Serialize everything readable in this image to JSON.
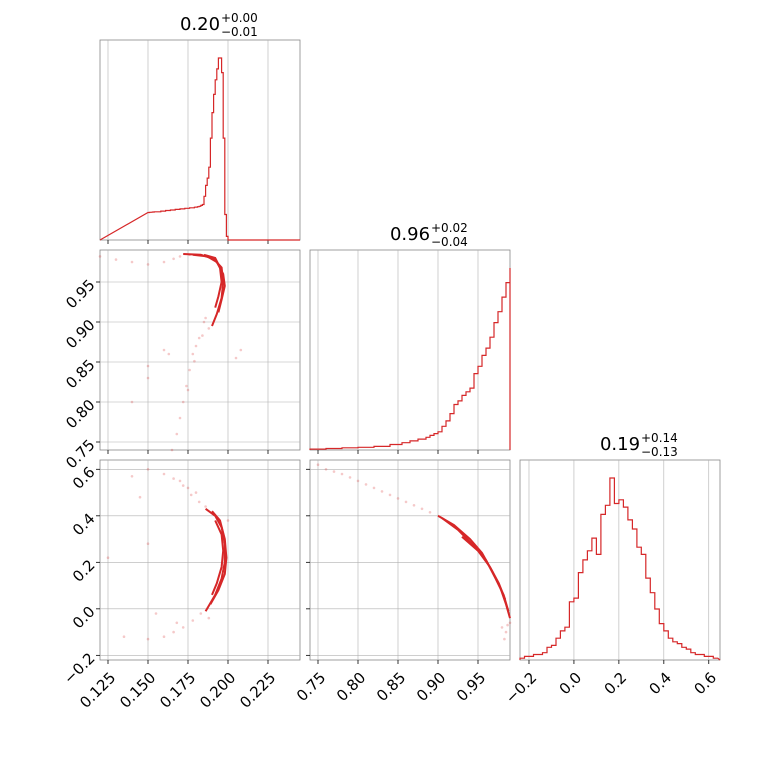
{
  "colors": {
    "accent": "#d62728",
    "grid": "#b0b0b0",
    "frame": "#888888"
  },
  "chart_data": [
    {
      "type": "histogram",
      "panel": "diag-0",
      "title": {
        "value": "0.20",
        "plus": "+0.00",
        "minus": "−0.01"
      },
      "xlim": [
        0.12,
        0.245
      ],
      "xticks": [
        0.125,
        0.15,
        0.175,
        0.2,
        0.225
      ],
      "bins": [
        [
          0.15,
          0.151
        ],
        [
          0.151,
          0.152
        ],
        [
          0.152,
          0.153
        ],
        [
          0.153,
          0.154
        ],
        [
          0.154,
          0.155
        ],
        [
          0.158,
          0.159
        ],
        [
          0.161,
          0.162
        ],
        [
          0.164,
          0.165
        ],
        [
          0.167,
          0.168
        ],
        [
          0.17,
          0.171
        ],
        [
          0.173,
          0.174
        ],
        [
          0.176,
          0.177
        ],
        [
          0.179,
          0.18
        ],
        [
          0.18,
          0.181
        ],
        [
          0.181,
          0.183
        ],
        [
          0.182,
          0.185
        ],
        [
          0.183,
          0.19
        ],
        [
          0.184,
          0.195
        ],
        [
          0.185,
          0.24
        ],
        [
          0.186,
          0.3
        ],
        [
          0.187,
          0.34
        ],
        [
          0.188,
          0.4
        ],
        [
          0.189,
          0.56
        ],
        [
          0.19,
          0.7
        ],
        [
          0.191,
          0.8
        ],
        [
          0.192,
          0.88
        ],
        [
          0.193,
          0.94
        ],
        [
          0.194,
          1.0
        ],
        [
          0.195,
          1.0
        ],
        [
          0.196,
          0.92
        ],
        [
          0.197,
          0.56
        ],
        [
          0.198,
          0.14
        ],
        [
          0.199,
          0.02
        ],
        [
          0.2,
          0.0
        ]
      ]
    },
    {
      "type": "histogram",
      "panel": "diag-1",
      "title": {
        "value": "0.96",
        "plus": "+0.02",
        "minus": "−0.04"
      },
      "xlim": [
        0.74,
        0.99
      ],
      "xticks": [
        0.75,
        0.8,
        0.85,
        0.9,
        0.95
      ],
      "bins": [
        [
          0.74,
          0.005
        ],
        [
          0.76,
          0.008
        ],
        [
          0.78,
          0.012
        ],
        [
          0.8,
          0.015
        ],
        [
          0.82,
          0.02
        ],
        [
          0.84,
          0.03
        ],
        [
          0.855,
          0.04
        ],
        [
          0.865,
          0.05
        ],
        [
          0.875,
          0.06
        ],
        [
          0.885,
          0.07
        ],
        [
          0.89,
          0.08
        ],
        [
          0.895,
          0.09
        ],
        [
          0.9,
          0.1
        ],
        [
          0.905,
          0.13
        ],
        [
          0.91,
          0.16
        ],
        [
          0.915,
          0.2
        ],
        [
          0.92,
          0.25
        ],
        [
          0.925,
          0.27
        ],
        [
          0.93,
          0.3
        ],
        [
          0.935,
          0.32
        ],
        [
          0.94,
          0.34
        ],
        [
          0.945,
          0.42
        ],
        [
          0.95,
          0.46
        ],
        [
          0.955,
          0.52
        ],
        [
          0.96,
          0.56
        ],
        [
          0.965,
          0.62
        ],
        [
          0.97,
          0.7
        ],
        [
          0.975,
          0.76
        ],
        [
          0.98,
          0.84
        ],
        [
          0.985,
          0.92
        ],
        [
          0.99,
          1.0
        ]
      ]
    },
    {
      "type": "histogram",
      "panel": "diag-2",
      "title": {
        "value": "0.19",
        "plus": "+0.14",
        "minus": "−0.13"
      },
      "xlim": [
        -0.24,
        0.65
      ],
      "xticks": [
        -0.2,
        0.0,
        0.2,
        0.4,
        0.6
      ],
      "bins": [
        [
          -0.24,
          0.01
        ],
        [
          -0.22,
          0.02
        ],
        [
          -0.2,
          0.02
        ],
        [
          -0.18,
          0.03
        ],
        [
          -0.16,
          0.03
        ],
        [
          -0.14,
          0.04
        ],
        [
          -0.12,
          0.07
        ],
        [
          -0.1,
          0.08
        ],
        [
          -0.08,
          0.12
        ],
        [
          -0.06,
          0.16
        ],
        [
          -0.04,
          0.18
        ],
        [
          -0.02,
          0.32
        ],
        [
          0.0,
          0.34
        ],
        [
          0.02,
          0.48
        ],
        [
          0.04,
          0.55
        ],
        [
          0.06,
          0.6
        ],
        [
          0.08,
          0.67
        ],
        [
          0.1,
          0.58
        ],
        [
          0.12,
          0.8
        ],
        [
          0.14,
          0.85
        ],
        [
          0.16,
          1.0
        ],
        [
          0.18,
          0.86
        ],
        [
          0.2,
          0.88
        ],
        [
          0.22,
          0.84
        ],
        [
          0.24,
          0.77
        ],
        [
          0.26,
          0.72
        ],
        [
          0.28,
          0.62
        ],
        [
          0.3,
          0.58
        ],
        [
          0.32,
          0.45
        ],
        [
          0.34,
          0.37
        ],
        [
          0.36,
          0.28
        ],
        [
          0.38,
          0.2
        ],
        [
          0.4,
          0.16
        ],
        [
          0.42,
          0.12
        ],
        [
          0.44,
          0.1
        ],
        [
          0.46,
          0.09
        ],
        [
          0.48,
          0.07
        ],
        [
          0.5,
          0.06
        ],
        [
          0.52,
          0.04
        ],
        [
          0.54,
          0.03
        ],
        [
          0.56,
          0.03
        ],
        [
          0.58,
          0.02
        ],
        [
          0.6,
          0.02
        ],
        [
          0.62,
          0.01
        ]
      ]
    },
    {
      "type": "scatter",
      "panel": "lower-1-0",
      "xlim": [
        0.12,
        0.245
      ],
      "ylim": [
        0.74,
        0.99
      ],
      "xticks": [
        0.125,
        0.15,
        0.175,
        0.2,
        0.225
      ],
      "yticks": [
        0.75,
        0.8,
        0.85,
        0.9,
        0.95
      ],
      "contours": [
        [
          [
            0.172,
            0.985
          ],
          [
            0.183,
            0.984
          ],
          [
            0.191,
            0.979
          ],
          [
            0.196,
            0.968
          ],
          [
            0.197,
            0.95
          ],
          [
            0.196,
            0.93
          ],
          [
            0.193,
            0.91
          ],
          [
            0.19,
            0.895
          ]
        ],
        [
          [
            0.178,
            0.984
          ],
          [
            0.187,
            0.982
          ],
          [
            0.193,
            0.975
          ],
          [
            0.197,
            0.96
          ],
          [
            0.198,
            0.945
          ],
          [
            0.196,
            0.928
          ],
          [
            0.194,
            0.912
          ]
        ],
        [
          [
            0.185,
            0.984
          ],
          [
            0.192,
            0.98
          ],
          [
            0.195,
            0.968
          ],
          [
            0.196,
            0.95
          ],
          [
            0.194,
            0.932
          ],
          [
            0.192,
            0.918
          ]
        ]
      ],
      "points": [
        [
          0.12,
          0.982
        ],
        [
          0.13,
          0.978
        ],
        [
          0.14,
          0.975
        ],
        [
          0.15,
          0.972
        ],
        [
          0.16,
          0.975
        ],
        [
          0.166,
          0.979
        ],
        [
          0.17,
          0.982
        ],
        [
          0.176,
          0.984
        ],
        [
          0.185,
          0.9
        ],
        [
          0.182,
          0.88
        ],
        [
          0.178,
          0.86
        ],
        [
          0.176,
          0.84
        ],
        [
          0.174,
          0.82
        ],
        [
          0.172,
          0.8
        ],
        [
          0.17,
          0.78
        ],
        [
          0.168,
          0.76
        ],
        [
          0.165,
          0.74
        ],
        [
          0.18,
          0.87
        ],
        [
          0.186,
          0.905
        ],
        [
          0.188,
          0.892
        ],
        [
          0.208,
          0.865
        ],
        [
          0.205,
          0.855
        ],
        [
          0.15,
          0.83
        ],
        [
          0.16,
          0.865
        ],
        [
          0.175,
          0.815
        ],
        [
          0.14,
          0.8
        ],
        [
          0.15,
          0.845
        ],
        [
          0.163,
          0.86
        ],
        [
          0.184,
          0.883
        ],
        [
          0.179,
          0.851
        ]
      ]
    },
    {
      "type": "scatter",
      "panel": "lower-2-0",
      "xlim": [
        0.12,
        0.245
      ],
      "ylim": [
        -0.22,
        0.64
      ],
      "xticks": [
        0.125,
        0.15,
        0.175,
        0.2,
        0.225
      ],
      "yticks": [
        -0.2,
        0.0,
        0.2,
        0.4,
        0.6
      ],
      "contours": [
        [
          [
            0.186,
            0.43
          ],
          [
            0.192,
            0.4
          ],
          [
            0.196,
            0.35
          ],
          [
            0.198,
            0.28
          ],
          [
            0.198,
            0.2
          ],
          [
            0.196,
            0.13
          ],
          [
            0.192,
            0.06
          ],
          [
            0.186,
            -0.01
          ]
        ],
        [
          [
            0.19,
            0.42
          ],
          [
            0.195,
            0.38
          ],
          [
            0.198,
            0.3
          ],
          [
            0.199,
            0.22
          ],
          [
            0.198,
            0.15
          ],
          [
            0.194,
            0.08
          ],
          [
            0.189,
            0.02
          ]
        ],
        [
          [
            0.192,
            0.38
          ],
          [
            0.196,
            0.32
          ],
          [
            0.197,
            0.25
          ],
          [
            0.196,
            0.18
          ],
          [
            0.193,
            0.11
          ],
          [
            0.19,
            0.06
          ]
        ]
      ],
      "points": [
        [
          0.15,
          0.6
        ],
        [
          0.16,
          0.58
        ],
        [
          0.166,
          0.56
        ],
        [
          0.172,
          0.53
        ],
        [
          0.177,
          0.49
        ],
        [
          0.182,
          0.46
        ],
        [
          0.186,
          0.44
        ],
        [
          0.175,
          0.52
        ],
        [
          0.17,
          0.55
        ],
        [
          0.183,
          -0.02
        ],
        [
          0.178,
          -0.05
        ],
        [
          0.172,
          -0.08
        ],
        [
          0.166,
          -0.1
        ],
        [
          0.16,
          -0.12
        ],
        [
          0.15,
          -0.13
        ],
        [
          0.135,
          -0.12
        ],
        [
          0.125,
          0.22
        ],
        [
          0.15,
          0.28
        ],
        [
          0.14,
          0.57
        ],
        [
          0.145,
          0.48
        ],
        [
          0.2,
          0.38
        ],
        [
          0.188,
          -0.04
        ],
        [
          0.168,
          -0.06
        ],
        [
          0.155,
          -0.02
        ],
        [
          0.18,
          0.5
        ]
      ]
    },
    {
      "type": "scatter",
      "panel": "lower-2-1",
      "xlim": [
        0.74,
        0.99
      ],
      "ylim": [
        -0.22,
        0.64
      ],
      "xticks": [
        0.75,
        0.8,
        0.85,
        0.9,
        0.95
      ],
      "yticks": [
        -0.2,
        0.0,
        0.2,
        0.4,
        0.6
      ],
      "contours": [
        [
          [
            0.9,
            0.4
          ],
          [
            0.92,
            0.36
          ],
          [
            0.94,
            0.3
          ],
          [
            0.955,
            0.24
          ],
          [
            0.968,
            0.16
          ],
          [
            0.978,
            0.09
          ],
          [
            0.985,
            0.02
          ],
          [
            0.99,
            -0.04
          ]
        ],
        [
          [
            0.905,
            0.39
          ],
          [
            0.925,
            0.34
          ],
          [
            0.945,
            0.27
          ],
          [
            0.96,
            0.21
          ],
          [
            0.972,
            0.13
          ],
          [
            0.982,
            0.06
          ],
          [
            0.988,
            -0.01
          ]
        ],
        [
          [
            0.93,
            0.31
          ],
          [
            0.95,
            0.25
          ],
          [
            0.965,
            0.18
          ],
          [
            0.976,
            0.11
          ],
          [
            0.984,
            0.04
          ]
        ]
      ],
      "points": [
        [
          0.75,
          0.62
        ],
        [
          0.76,
          0.6
        ],
        [
          0.78,
          0.58
        ],
        [
          0.8,
          0.55
        ],
        [
          0.82,
          0.52
        ],
        [
          0.84,
          0.49
        ],
        [
          0.86,
          0.46
        ],
        [
          0.88,
          0.43
        ],
        [
          0.89,
          0.415
        ],
        [
          0.87,
          0.445
        ],
        [
          0.85,
          0.475
        ],
        [
          0.83,
          0.505
        ],
        [
          0.81,
          0.535
        ],
        [
          0.79,
          0.565
        ],
        [
          0.77,
          0.59
        ],
        [
          0.985,
          -0.1
        ],
        [
          0.983,
          -0.13
        ],
        [
          0.987,
          -0.07
        ],
        [
          0.99,
          -0.06
        ],
        [
          0.98,
          -0.08
        ]
      ]
    }
  ]
}
